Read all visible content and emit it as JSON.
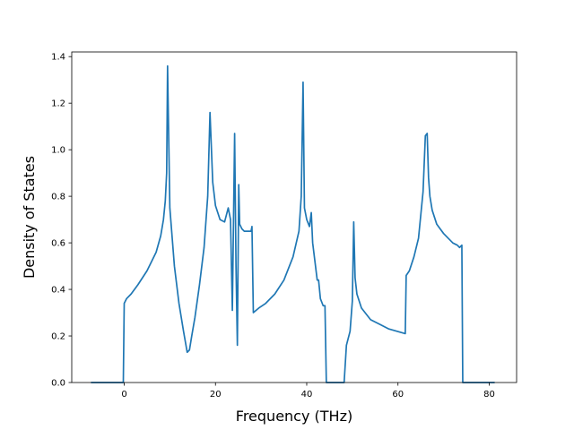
{
  "chart_data": {
    "type": "line",
    "title": "",
    "xlabel": "Frequency (THz)",
    "ylabel": "Density of States",
    "xlim": [
      -11.5,
      86.0
    ],
    "ylim": [
      0.0,
      1.42
    ],
    "xticks": [
      0,
      20,
      40,
      60,
      80
    ],
    "xtick_labels": [
      "0",
      "20",
      "40",
      "60",
      "80"
    ],
    "yticks": [
      0.0,
      0.2,
      0.4,
      0.6,
      0.8,
      1.0,
      1.2,
      1.4
    ],
    "ytick_labels": [
      "0.0",
      "0.2",
      "0.4",
      "0.6",
      "0.8",
      "1.0",
      "1.2",
      "1.4"
    ],
    "grid": false,
    "legend": "none",
    "line_color": "#1f77b4",
    "series": [
      {
        "x": [
          -7.3,
          -0.2,
          0.0,
          0.5,
          1.5,
          3,
          5,
          7,
          8,
          8.6,
          9.0,
          9.3,
          9.5,
          10.0,
          11,
          12,
          13,
          13.8,
          14.3,
          14.8,
          15.5,
          16.5,
          17.5,
          18.3,
          18.8,
          19.4,
          20,
          21,
          22,
          22.8,
          23.3,
          23.7,
          24.2,
          24.5,
          24.8,
          25.1,
          25.3,
          25.8,
          26.3,
          27,
          27.8,
          28.0,
          28.3,
          29.5,
          31,
          33,
          35,
          37,
          38.3,
          38.8,
          39.2,
          39.5,
          40,
          40.6,
          41.0,
          41.3,
          41.8,
          42.3,
          42.6,
          43,
          43.6,
          44.0,
          44.3,
          48.2,
          48.7,
          49.5,
          50.0,
          50.3,
          50.6,
          51,
          52,
          54,
          56,
          58,
          61.6,
          61.8,
          62.5,
          63.5,
          64.5,
          65.5,
          66.0,
          66.4,
          66.7,
          67,
          67.5,
          68.5,
          70,
          72,
          73,
          73.5,
          74,
          74.2,
          74.3,
          81.2
        ],
        "y": [
          0.0,
          0.0,
          0.34,
          0.36,
          0.38,
          0.42,
          0.48,
          0.56,
          0.63,
          0.7,
          0.78,
          0.9,
          1.36,
          0.75,
          0.5,
          0.34,
          0.22,
          0.13,
          0.14,
          0.2,
          0.28,
          0.42,
          0.58,
          0.8,
          1.16,
          0.86,
          0.76,
          0.7,
          0.69,
          0.75,
          0.7,
          0.31,
          1.07,
          0.5,
          0.16,
          0.85,
          0.68,
          0.66,
          0.65,
          0.65,
          0.65,
          0.67,
          0.3,
          0.32,
          0.34,
          0.38,
          0.44,
          0.54,
          0.65,
          0.8,
          1.29,
          0.75,
          0.7,
          0.67,
          0.73,
          0.6,
          0.52,
          0.44,
          0.44,
          0.36,
          0.33,
          0.33,
          0.0,
          0.0,
          0.16,
          0.22,
          0.35,
          0.69,
          0.45,
          0.38,
          0.32,
          0.27,
          0.25,
          0.23,
          0.21,
          0.46,
          0.48,
          0.54,
          0.62,
          0.82,
          1.06,
          1.07,
          0.88,
          0.8,
          0.74,
          0.68,
          0.64,
          0.6,
          0.59,
          0.58,
          0.59,
          0.0,
          0.0,
          0.0
        ]
      }
    ]
  }
}
